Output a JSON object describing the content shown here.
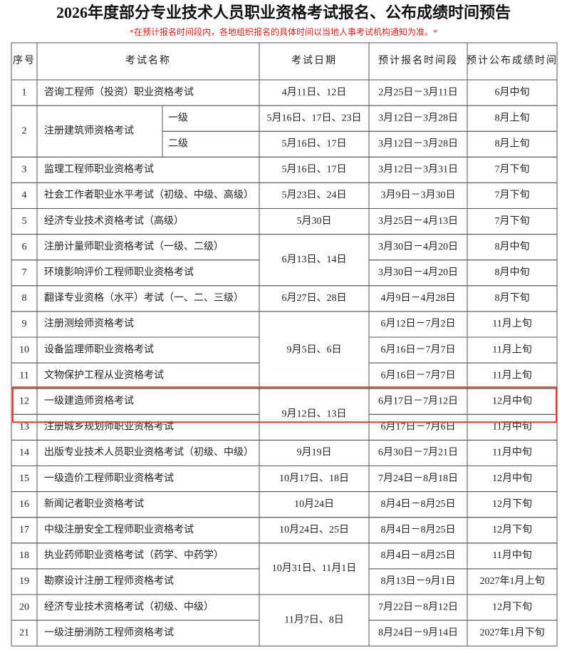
{
  "header": {
    "title": "2026年度部分专业技术人员职业资格考试报名、公布成绩时间预告",
    "subtitle": "*在预计报名时间段内，各地组织报名的具体时间以当地人事考试机构通知为准。*"
  },
  "table": {
    "columns": [
      "序号",
      "考试名称",
      "考试日期",
      "预计报名时间段",
      "预计公布成绩时间"
    ],
    "groups": [
      {
        "date": "4月11日、12日",
        "rows": [
          {
            "no": "1",
            "name": "咨询工程师（投资）职业资格考试",
            "signup": "2月25日－3月11日",
            "result": "6月中旬"
          }
        ]
      },
      {
        "rows": [
          {
            "no": "2",
            "name": "注册建筑师资格考试",
            "levels": [
              {
                "level": "一级",
                "date": "5月16日、17日、23日",
                "signup": "3月12日－3月28日",
                "result": "8月上旬"
              },
              {
                "level": "二级",
                "date": "5月16日、17日",
                "signup": "3月12日－3月28日",
                "result": "8月上旬"
              }
            ]
          }
        ]
      },
      {
        "date": "5月16日、17日",
        "rows": [
          {
            "no": "3",
            "name": "监理工程师职业资格考试",
            "signup": "3月12日－3月31日",
            "result": "7月下旬"
          }
        ]
      },
      {
        "date": "5月23日、24日",
        "rows": [
          {
            "no": "4",
            "name": "社会工作者职业水平考试（初级、中级、高级）",
            "signup": "3月9日－3月30日",
            "result": "7月下旬"
          }
        ]
      },
      {
        "date": "5月30日",
        "rows": [
          {
            "no": "5",
            "name": "经济专业技术资格考试（高级）",
            "signup": "3月25日－4月13日",
            "result": "7月下旬"
          }
        ]
      },
      {
        "date": "6月13日、14日",
        "rows": [
          {
            "no": "6",
            "name": "注册计量师职业资格考试（一级、二级）",
            "signup": "3月30日－4月20日",
            "result": "8月中旬"
          },
          {
            "no": "7",
            "name": "环境影响评价工程师职业资格考试",
            "signup": "3月30日－4月20日",
            "result": "8月中旬"
          }
        ]
      },
      {
        "date": "6月27日、28日",
        "rows": [
          {
            "no": "8",
            "name": "翻译专业资格（水平）考试（一、二、三级）",
            "signup": "4月9日－4月28日",
            "result": "8月下旬"
          }
        ]
      },
      {
        "date": "9月5日、6日",
        "rows": [
          {
            "no": "9",
            "name": "注册测绘师资格考试",
            "signup": "6月12日－7月2日",
            "result": "11月上旬"
          },
          {
            "no": "10",
            "name": "设备监理师职业资格考试",
            "signup": "6月16日－7月7日",
            "result": "11月上旬"
          },
          {
            "no": "11",
            "name": "文物保护工程从业资格考试",
            "signup": "6月16日－7月7日",
            "result": "11月上旬"
          }
        ]
      },
      {
        "date": "9月12日、13日",
        "rows": [
          {
            "no": "12",
            "name": "一级建造师资格考试",
            "signup": "6月17日－7月12日",
            "result": "12月中旬"
          },
          {
            "no": "13",
            "name": "注册城乡规划师职业资格考试",
            "signup": "6月17日－7月6日",
            "result": "11月中旬"
          }
        ]
      },
      {
        "date": "9月19日",
        "rows": [
          {
            "no": "14",
            "name": "出版专业技术人员职业资格考试（初级、中级）",
            "signup": "6月30日－7月21日",
            "result": "11月中旬"
          }
        ]
      },
      {
        "date": "10月17日、18日",
        "rows": [
          {
            "no": "15",
            "name": "一级造价工程师职业资格考试",
            "signup": "7月24日－8月18日",
            "result": "12月中旬"
          }
        ]
      },
      {
        "date": "10月24日",
        "rows": [
          {
            "no": "16",
            "name": "新闻记者职业资格考试",
            "signup": "8月4日－8月25日",
            "result": "12月下旬"
          }
        ]
      },
      {
        "date": "10月24日、25日",
        "rows": [
          {
            "no": "17",
            "name": "中级注册安全工程师职业资格考试",
            "signup": "8月4日－8月25日",
            "result": "12月下旬"
          }
        ]
      },
      {
        "date": "10月31日、11月1日",
        "rows": [
          {
            "no": "18",
            "name": "执业药师职业资格考试（药学、中药学）",
            "signup": "8月4日－8月25日",
            "result": "11月中旬"
          },
          {
            "no": "19",
            "name": "勘察设计注册工程师资格考试",
            "signup": "8月13日－9月1日",
            "result": "2027年1月上旬"
          }
        ]
      },
      {
        "date": "11月7日、8日",
        "rows": [
          {
            "no": "20",
            "name": "经济专业技术资格考试（初级、中级）",
            "signup": "7月22日－8月12日",
            "result": "12月下旬"
          },
          {
            "no": "21",
            "name": "一级注册消防工程师资格考试",
            "signup": "8月24日－9月14日",
            "result": "2027年1月下旬"
          }
        ]
      }
    ]
  }
}
